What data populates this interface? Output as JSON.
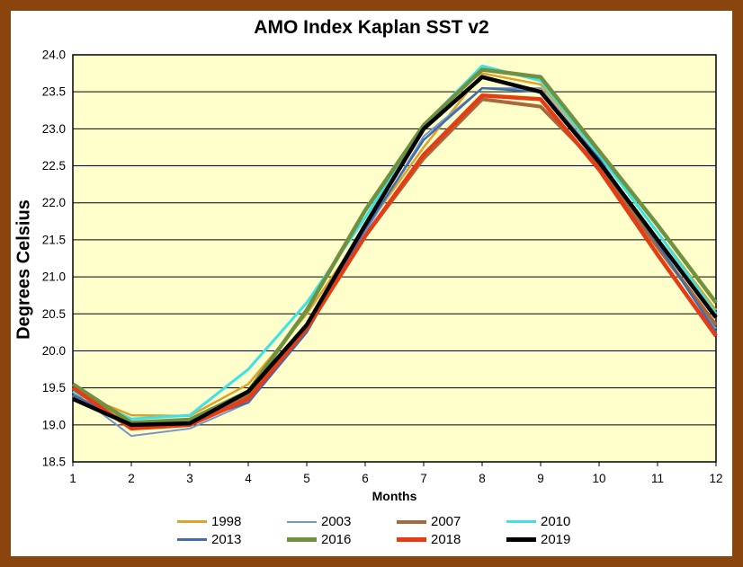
{
  "figure": {
    "frame_color": "#8a450e",
    "background": "#ffffff"
  },
  "chart_data": {
    "type": "line",
    "title": "AMO Index Kaplan SST v2",
    "xlabel": "Months",
    "ylabel": "Degrees Celsius",
    "plot_bg": "#ffffcc",
    "grid": "horizontal",
    "legend_position": "bottom",
    "ylim": [
      18.5,
      24.0
    ],
    "xtick_labels": [
      "1",
      "2",
      "3",
      "4",
      "5",
      "6",
      "7",
      "8",
      "9",
      "10",
      "11",
      "12"
    ],
    "ytick_labels": [
      "18.5",
      "19.0",
      "19.5",
      "20.0",
      "20.5",
      "21.0",
      "21.5",
      "22.0",
      "22.5",
      "23.0",
      "23.5",
      "24.0"
    ],
    "series": [
      {
        "name": "1998",
        "color": "#e0a126",
        "line_width": 2.5,
        "values": [
          19.45,
          19.13,
          19.12,
          19.55,
          20.5,
          21.65,
          22.75,
          23.75,
          23.6,
          22.65,
          21.6,
          20.55
        ]
      },
      {
        "name": "2003",
        "color": "#7596c8",
        "line_width": 2,
        "values": [
          19.45,
          18.85,
          18.95,
          19.3,
          20.25,
          21.6,
          22.9,
          23.55,
          23.55,
          22.6,
          21.45,
          20.3
        ]
      },
      {
        "name": "2007",
        "color": "#a8683b",
        "line_width": 4,
        "values": [
          19.4,
          19.0,
          19.05,
          19.4,
          20.3,
          21.55,
          22.6,
          23.4,
          23.3,
          22.5,
          21.4,
          20.35
        ]
      },
      {
        "name": "2010",
        "color": "#3be3e6",
        "line_width": 3,
        "values": [
          19.45,
          19.08,
          19.13,
          19.75,
          20.65,
          21.8,
          23.05,
          23.85,
          23.65,
          22.65,
          21.6,
          20.5
        ]
      },
      {
        "name": "2013",
        "color": "#3e6db4",
        "line_width": 2.5,
        "values": [
          19.4,
          19.0,
          19.05,
          19.3,
          20.25,
          21.65,
          22.85,
          23.55,
          23.5,
          22.6,
          21.45,
          20.25
        ]
      },
      {
        "name": "2016",
        "color": "#6f9140",
        "line_width": 4.5,
        "values": [
          19.55,
          19.03,
          19.07,
          19.45,
          20.55,
          21.9,
          23.05,
          23.8,
          23.7,
          22.7,
          21.7,
          20.65
        ]
      },
      {
        "name": "2018",
        "color": "#e63c16",
        "line_width": 4.5,
        "values": [
          19.5,
          18.95,
          19.0,
          19.35,
          20.3,
          21.55,
          22.65,
          23.45,
          23.4,
          22.45,
          21.3,
          20.2
        ]
      },
      {
        "name": "2019",
        "color": "#000000",
        "line_width": 4.5,
        "values": [
          19.35,
          19.0,
          19.02,
          19.45,
          20.35,
          21.7,
          23.0,
          23.7,
          23.5,
          22.55,
          21.5,
          20.45
        ]
      }
    ]
  }
}
